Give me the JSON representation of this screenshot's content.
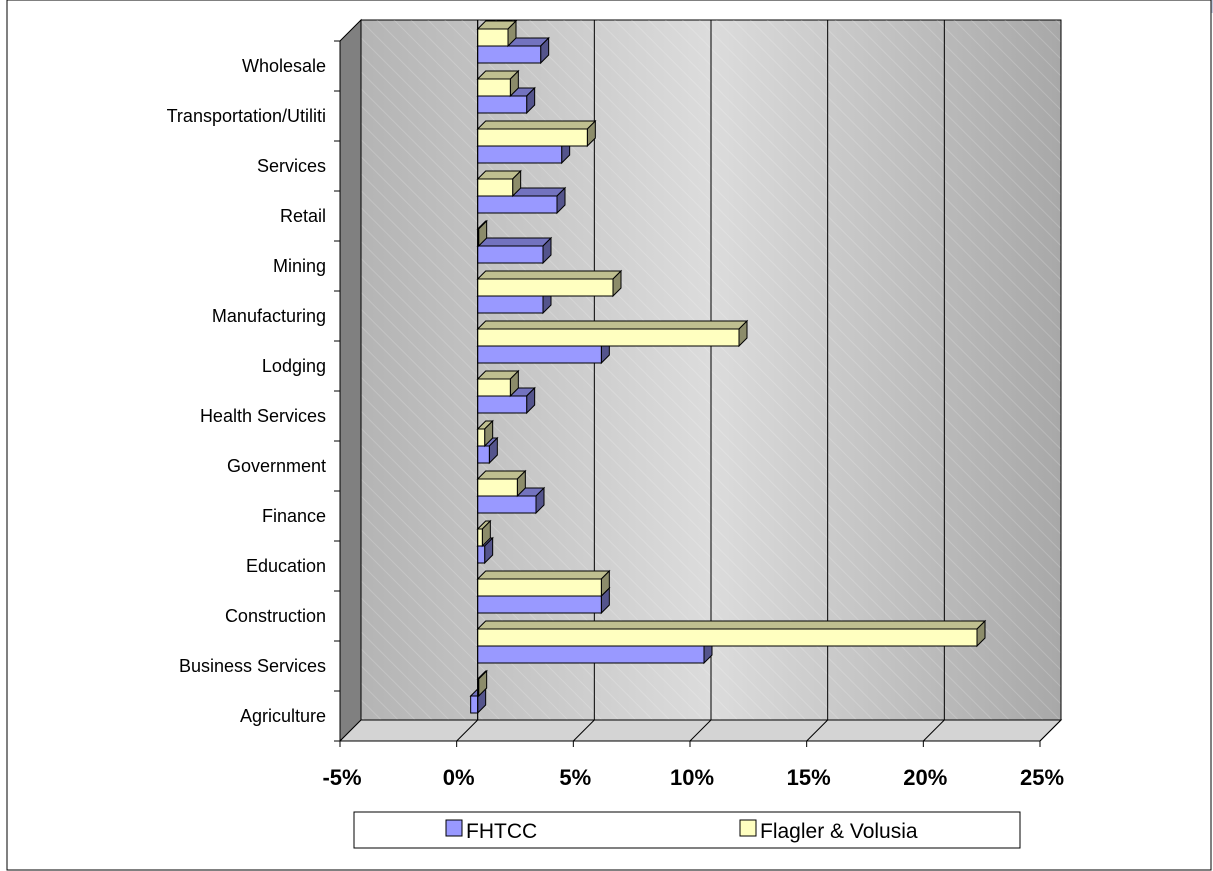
{
  "chart_data": {
    "type": "bar",
    "orientation": "horizontal",
    "three_d": true,
    "categories": [
      "Agriculture",
      "Business Services",
      "Construction",
      "Education",
      "Finance",
      "Government",
      "Health Services",
      "Lodging",
      "Manufacturing",
      "Mining",
      "Retail",
      "Services",
      "Transportation/Utiliti",
      "Wholesale"
    ],
    "series": [
      {
        "name": "FHTCC",
        "color": "#9999ff",
        "values": [
          -0.3,
          9.7,
          5.3,
          0.3,
          2.5,
          0.5,
          2.1,
          5.3,
          2.8,
          2.8,
          3.4,
          3.6,
          2.1,
          2.7
        ]
      },
      {
        "name": "Flagler & Volusia",
        "color": "#ffffc0",
        "values": [
          0.0,
          21.4,
          5.3,
          0.2,
          1.7,
          0.3,
          1.4,
          11.2,
          5.8,
          0.0,
          1.5,
          4.7,
          1.4,
          1.3
        ]
      }
    ],
    "x_ticks": [
      "-5%",
      "0%",
      "5%",
      "10%",
      "15%",
      "20%",
      "25%"
    ],
    "xlim": [
      -5,
      25
    ],
    "grid": true,
    "legend_position": "bottom"
  }
}
